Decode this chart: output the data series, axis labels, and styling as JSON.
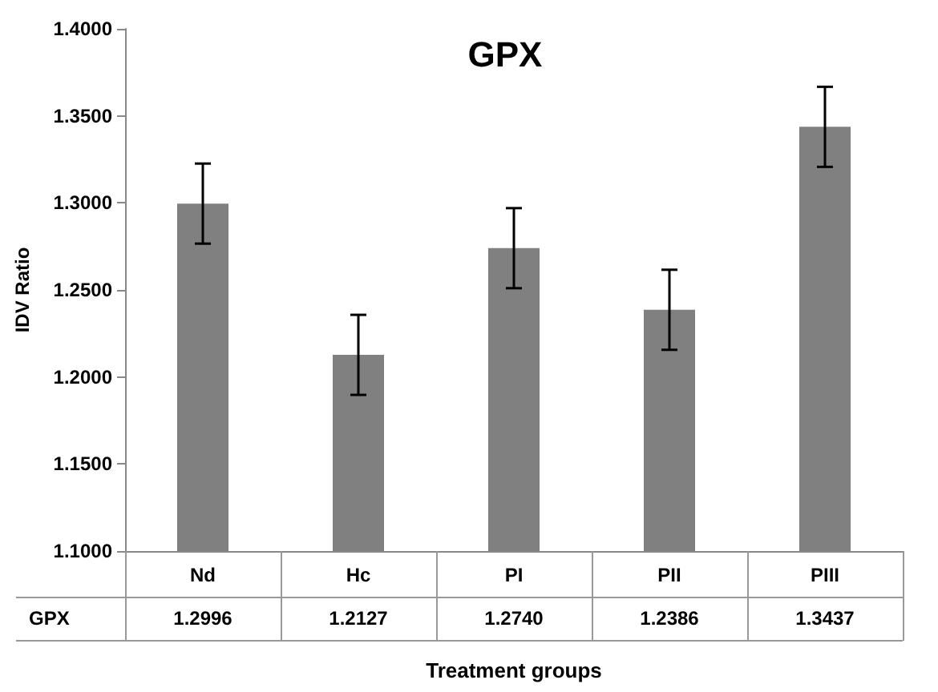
{
  "chart_data": {
    "type": "bar",
    "title": "GPX",
    "xlabel": "Treatment groups",
    "ylabel": "IDV Ratio",
    "categories": [
      "Nd",
      "Hc",
      "PI",
      "PII",
      "PIII"
    ],
    "series": [
      {
        "name": "GPX",
        "color": "#808080",
        "values": [
          1.2996,
          1.2127,
          1.274,
          1.2386,
          1.3437
        ],
        "errors": [
          0.023,
          0.023,
          0.023,
          0.023,
          0.023
        ]
      }
    ],
    "ylim": [
      1.1,
      1.4
    ],
    "yticks": [
      {
        "value": 1.1,
        "label": "1.1000"
      },
      {
        "value": 1.15,
        "label": "1.1500"
      },
      {
        "value": 1.2,
        "label": "1.2000"
      },
      {
        "value": 1.25,
        "label": "1.2500"
      },
      {
        "value": 1.3,
        "label": "1.3000"
      },
      {
        "value": 1.35,
        "label": "1.3500"
      },
      {
        "value": 1.4,
        "label": "1.4000"
      }
    ],
    "value_labels": [
      "1.2996",
      "1.2127",
      "1.2740",
      "1.2386",
      "1.3437"
    ],
    "grid": false,
    "legend": false
  }
}
